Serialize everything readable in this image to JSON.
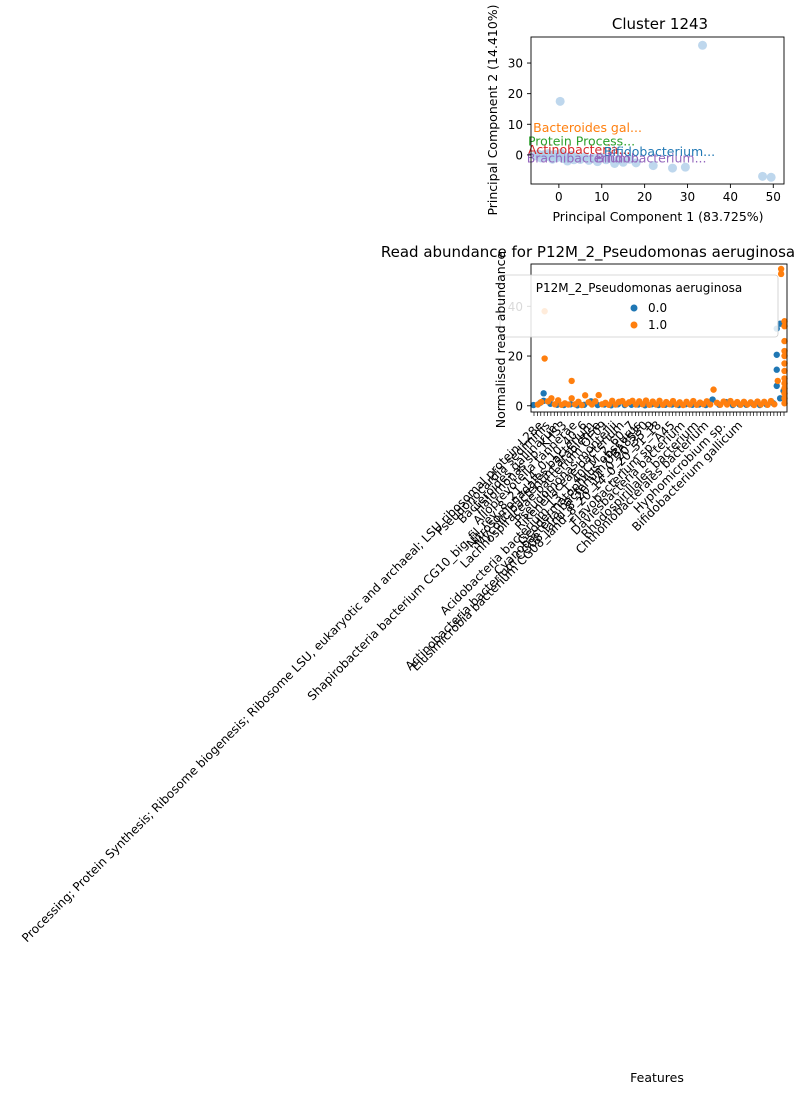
{
  "chart_data": [
    {
      "type": "scatter",
      "title": "Cluster 1243",
      "xlabel": "Principal Component 1 (83.725%)",
      "ylabel": "Principal Component 2 (14.410%)",
      "xlim": [
        -6.5,
        52.5
      ],
      "ylim": [
        -9.5,
        38.5
      ],
      "xticks": [
        0,
        10,
        20,
        30,
        40,
        50
      ],
      "yticks": [
        0,
        10,
        20,
        30
      ],
      "grid": false,
      "point_color": "#aecde8",
      "points": [
        {
          "x": -5.5,
          "y": -0.3
        },
        {
          "x": -4.8,
          "y": 0.3
        },
        {
          "x": -4.2,
          "y": -1.0
        },
        {
          "x": -3.5,
          "y": 0.1
        },
        {
          "x": -3.0,
          "y": -0.6
        },
        {
          "x": -2.5,
          "y": 0.4
        },
        {
          "x": -2.0,
          "y": -0.2
        },
        {
          "x": -1.5,
          "y": -1.4
        },
        {
          "x": -1.0,
          "y": 0.2
        },
        {
          "x": -0.5,
          "y": -0.9
        },
        {
          "x": 0.0,
          "y": -0.3
        },
        {
          "x": 0.5,
          "y": 0.6
        },
        {
          "x": 1.0,
          "y": -1.2
        },
        {
          "x": 1.5,
          "y": -0.5
        },
        {
          "x": 2.0,
          "y": -2.0
        },
        {
          "x": 2.5,
          "y": -1.0
        },
        {
          "x": 3.0,
          "y": -0.1
        },
        {
          "x": 3.5,
          "y": -1.6
        },
        {
          "x": 4.2,
          "y": -0.7
        },
        {
          "x": 5.0,
          "y": -1.5
        },
        {
          "x": 6.0,
          "y": -0.6
        },
        {
          "x": 7.0,
          "y": -1.8
        },
        {
          "x": 8.0,
          "y": -1.0
        },
        {
          "x": 9.0,
          "y": -2.2
        },
        {
          "x": 10.0,
          "y": -0.8
        },
        {
          "x": 11.0,
          "y": -1.6
        },
        {
          "x": 12.0,
          "y": -1.2
        },
        {
          "x": 13.0,
          "y": -2.8
        },
        {
          "x": 14.0,
          "y": -1.5
        },
        {
          "x": 15.0,
          "y": -2.4
        },
        {
          "x": 16.5,
          "y": -1.4
        },
        {
          "x": 18.0,
          "y": -2.6
        },
        {
          "x": 0.3,
          "y": 17.5
        },
        {
          "x": 22.0,
          "y": -3.5
        },
        {
          "x": 26.5,
          "y": -4.3
        },
        {
          "x": 29.5,
          "y": -4.0
        },
        {
          "x": 33.5,
          "y": 35.8
        },
        {
          "x": 47.5,
          "y": -7.0
        },
        {
          "x": 49.5,
          "y": -7.3
        }
      ],
      "annotations": [
        {
          "text": "Bacteroides gal...",
          "x": -6.0,
          "y": 7.5,
          "color": "#ff7f0e"
        },
        {
          "text": "Protein Process...",
          "x": -7.2,
          "y": 3.0,
          "color": "#2ca02c"
        },
        {
          "text": "Actinobacteria...",
          "x": -7.2,
          "y": 0.3,
          "color": "#d62728"
        },
        {
          "text": "Bifidobacterium...",
          "x": 10.5,
          "y": -0.3,
          "color": "#1f77b4"
        },
        {
          "text": "Brachibacterium...",
          "x": -7.5,
          "y": -2.5,
          "color": "#9467bd"
        },
        {
          "text": "Bifidobacterium...",
          "x": 8.5,
          "y": -2.5,
          "color": "#9467bd"
        }
      ]
    },
    {
      "type": "scatter",
      "title": "Read abundance for P12M_2_Pseudomonas aeruginosa",
      "xlabel": "Features",
      "ylabel": "Normalised read abundance",
      "ylim": [
        -2.5,
        57
      ],
      "yticks": [
        0,
        20,
        40
      ],
      "legend": {
        "title": "P12M_2_Pseudomonas aeruginosa",
        "placement": "top-right",
        "entries": [
          {
            "label": "0.0",
            "color": "#1f77b4"
          },
          {
            "label": "1.0",
            "color": "#ff7f0e"
          }
        ]
      },
      "n_features": 75,
      "series": [
        {
          "name": "0.0",
          "color": "#1f77b4",
          "points": [
            {
              "x": 0,
              "y": 0.3
            },
            {
              "x": 2,
              "y": 1.2
            },
            {
              "x": 3,
              "y": 5.0
            },
            {
              "x": 3,
              "y": 2.0
            },
            {
              "x": 5,
              "y": 0.8
            },
            {
              "x": 7,
              "y": 0.4
            },
            {
              "x": 9,
              "y": 0.3
            },
            {
              "x": 11,
              "y": 0.6
            },
            {
              "x": 13,
              "y": 0.2
            },
            {
              "x": 15,
              "y": 0.4
            },
            {
              "x": 17,
              "y": 1.8
            },
            {
              "x": 19,
              "y": 0.3
            },
            {
              "x": 21,
              "y": 0.5
            },
            {
              "x": 23,
              "y": 0.2
            },
            {
              "x": 25,
              "y": 0.6
            },
            {
              "x": 27,
              "y": 0.3
            },
            {
              "x": 29,
              "y": 0.4
            },
            {
              "x": 31,
              "y": 0.5
            },
            {
              "x": 33,
              "y": 0.2
            },
            {
              "x": 35,
              "y": 0.6
            },
            {
              "x": 37,
              "y": 0.3
            },
            {
              "x": 39,
              "y": 0.4
            },
            {
              "x": 41,
              "y": 0.5
            },
            {
              "x": 43,
              "y": 0.3
            },
            {
              "x": 45,
              "y": 0.6
            },
            {
              "x": 47,
              "y": 0.4
            },
            {
              "x": 49,
              "y": 0.5
            },
            {
              "x": 51,
              "y": 0.3
            },
            {
              "x": 53,
              "y": 2.5
            },
            {
              "x": 55,
              "y": 0.4
            },
            {
              "x": 57,
              "y": 1.5
            },
            {
              "x": 59,
              "y": 0.3
            },
            {
              "x": 61,
              "y": 0.5
            },
            {
              "x": 63,
              "y": 0.4
            },
            {
              "x": 65,
              "y": 0.6
            },
            {
              "x": 67,
              "y": 0.3
            },
            {
              "x": 69,
              "y": 0.5
            },
            {
              "x": 71,
              "y": 1.0
            },
            {
              "x": 72,
              "y": 8.0
            },
            {
              "x": 72,
              "y": 14.5
            },
            {
              "x": 72,
              "y": 20.5
            },
            {
              "x": 72,
              "y": 31.0
            },
            {
              "x": 73,
              "y": 33.0
            },
            {
              "x": 73,
              "y": 3.0
            },
            {
              "x": 74,
              "y": 6.0
            }
          ]
        },
        {
          "name": "1.0",
          "color": "#ff7f0e",
          "points": [
            {
              "x": 1,
              "y": 0.5
            },
            {
              "x": 2,
              "y": 1.5
            },
            {
              "x": 3,
              "y": 38.0
            },
            {
              "x": 3,
              "y": 19.0
            },
            {
              "x": 4,
              "y": 1.8
            },
            {
              "x": 5,
              "y": 3.0
            },
            {
              "x": 6,
              "y": 0.6
            },
            {
              "x": 7,
              "y": 2.2
            },
            {
              "x": 8,
              "y": 0.4
            },
            {
              "x": 9,
              "y": 1.0
            },
            {
              "x": 10,
              "y": 0.5
            },
            {
              "x": 11,
              "y": 10.0
            },
            {
              "x": 11,
              "y": 3.0
            },
            {
              "x": 12,
              "y": 0.6
            },
            {
              "x": 13,
              "y": 1.6
            },
            {
              "x": 14,
              "y": 0.3
            },
            {
              "x": 15,
              "y": 4.2
            },
            {
              "x": 16,
              "y": 1.4
            },
            {
              "x": 17,
              "y": 0.5
            },
            {
              "x": 18,
              "y": 1.8
            },
            {
              "x": 19,
              "y": 4.3
            },
            {
              "x": 20,
              "y": 0.6
            },
            {
              "x": 21,
              "y": 1.2
            },
            {
              "x": 22,
              "y": 0.4
            },
            {
              "x": 23,
              "y": 2.0
            },
            {
              "x": 24,
              "y": 0.5
            },
            {
              "x": 25,
              "y": 1.6
            },
            {
              "x": 26,
              "y": 1.9
            },
            {
              "x": 27,
              "y": 0.6
            },
            {
              "x": 28,
              "y": 1.4
            },
            {
              "x": 29,
              "y": 2.0
            },
            {
              "x": 30,
              "y": 0.5
            },
            {
              "x": 31,
              "y": 1.8
            },
            {
              "x": 32,
              "y": 0.6
            },
            {
              "x": 33,
              "y": 2.1
            },
            {
              "x": 34,
              "y": 0.4
            },
            {
              "x": 35,
              "y": 1.7
            },
            {
              "x": 36,
              "y": 0.5
            },
            {
              "x": 37,
              "y": 2.0
            },
            {
              "x": 38,
              "y": 0.4
            },
            {
              "x": 39,
              "y": 1.5
            },
            {
              "x": 40,
              "y": 0.6
            },
            {
              "x": 41,
              "y": 1.9
            },
            {
              "x": 42,
              "y": 0.5
            },
            {
              "x": 43,
              "y": 1.4
            },
            {
              "x": 44,
              "y": 0.3
            },
            {
              "x": 45,
              "y": 1.6
            },
            {
              "x": 46,
              "y": 0.5
            },
            {
              "x": 47,
              "y": 1.9
            },
            {
              "x": 48,
              "y": 0.4
            },
            {
              "x": 49,
              "y": 1.3
            },
            {
              "x": 50,
              "y": 0.6
            },
            {
              "x": 51,
              "y": 1.8
            },
            {
              "x": 52,
              "y": 0.5
            },
            {
              "x": 53,
              "y": 6.5
            },
            {
              "x": 54,
              "y": 1.2
            },
            {
              "x": 55,
              "y": 0.4
            },
            {
              "x": 56,
              "y": 1.7
            },
            {
              "x": 57,
              "y": 0.5
            },
            {
              "x": 58,
              "y": 1.9
            },
            {
              "x": 59,
              "y": 0.6
            },
            {
              "x": 60,
              "y": 1.5
            },
            {
              "x": 61,
              "y": 0.4
            },
            {
              "x": 62,
              "y": 1.6
            },
            {
              "x": 63,
              "y": 0.5
            },
            {
              "x": 64,
              "y": 1.4
            },
            {
              "x": 65,
              "y": 0.3
            },
            {
              "x": 66,
              "y": 1.7
            },
            {
              "x": 67,
              "y": 0.5
            },
            {
              "x": 68,
              "y": 1.6
            },
            {
              "x": 69,
              "y": 0.4
            },
            {
              "x": 70,
              "y": 1.9
            },
            {
              "x": 71,
              "y": 0.6
            },
            {
              "x": 72,
              "y": 10.0
            },
            {
              "x": 73,
              "y": 55.0
            },
            {
              "x": 73,
              "y": 53.0
            },
            {
              "x": 74,
              "y": 34.0
            },
            {
              "x": 74,
              "y": 32.0
            },
            {
              "x": 74,
              "y": 26.0
            },
            {
              "x": 74,
              "y": 22.0
            },
            {
              "x": 74,
              "y": 20.0
            },
            {
              "x": 74,
              "y": 17.0
            },
            {
              "x": 74,
              "y": 14.0
            },
            {
              "x": 74,
              "y": 11.0
            },
            {
              "x": 74,
              "y": 9.0
            },
            {
              "x": 74,
              "y": 7.0
            },
            {
              "x": 74,
              "y": 5.0
            },
            {
              "x": 74,
              "y": 3.0
            },
            {
              "x": 74,
              "y": 1.0
            }
          ]
        }
      ],
      "tick_labels": [
        {
          "x": 2,
          "text": "Processing; Protein Synthesis; Ribosome biogenesis; Ribosome LSU, eukaryotic and archaeal; LSU ribosomal protein L28e"
        },
        {
          "x": 4,
          "text": "Pseudonocardia sediminis"
        },
        {
          "x": 7,
          "text": "Bacteroides gallinarum"
        },
        {
          "x": 9,
          "text": "Halomonas sp. KHS3"
        },
        {
          "x": 12,
          "text": "Alloprevotella tannerae"
        },
        {
          "x": 15,
          "text": "Shapirobacteria bacterium CG10_big_fil_rev_8_21_14_0_10_40_6"
        },
        {
          "x": 17,
          "text": "Nitrosomonadales bacterium"
        },
        {
          "x": 19,
          "text": "Mycolicibacterium arabiense"
        },
        {
          "x": 21,
          "text": "Lachnospiraceae bacterium OF09"
        },
        {
          "x": 24,
          "text": "Pseudomonas monteilii"
        },
        {
          "x": 26,
          "text": "Rikenellaceae bacterium"
        },
        {
          "x": 29,
          "text": "Acidobacteria bacterium 13_1_40CM_2_60_7"
        },
        {
          "x": 31,
          "text": "Geodermatophilus obscurus"
        },
        {
          "x": 33,
          "text": "Cyanobacteria bacterium UBA8530"
        },
        {
          "x": 35,
          "text": "Actinobacteria bacterium CG08_land_8_20_14_0_20_35_9"
        },
        {
          "x": 37,
          "text": "Elusimicrobia bacterium CG08_land_8_20_14_0_20_51_18"
        },
        {
          "x": 41,
          "text": "Flavobacterium sp. A45"
        },
        {
          "x": 44,
          "text": "Daviesbacteria bacterium"
        },
        {
          "x": 48,
          "text": "Rhodospirillales bacterium"
        },
        {
          "x": 51,
          "text": "Chthoniobacterales bacterium"
        },
        {
          "x": 56,
          "text": "Hyphomicrobium sp."
        },
        {
          "x": 61,
          "text": "Bifidobacterium gallicum"
        }
      ]
    }
  ]
}
